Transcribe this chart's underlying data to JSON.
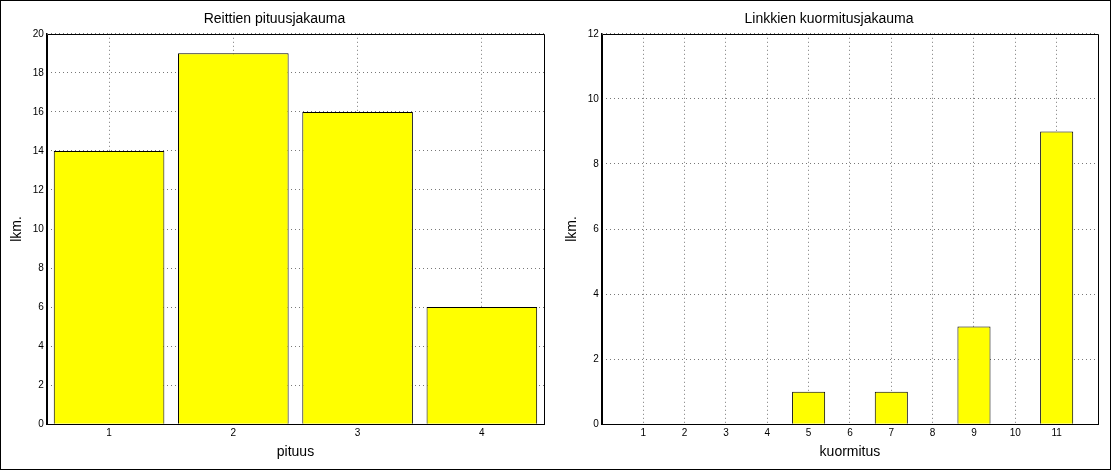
{
  "chart_data": [
    {
      "type": "bar",
      "title": "Reittien pituusjakauma",
      "xlabel": "pituus",
      "ylabel": "lkm.",
      "categories": [
        "1",
        "2",
        "3",
        "4"
      ],
      "values": [
        14,
        19,
        16,
        6
      ],
      "color": "#ffff00",
      "ylim": [
        0,
        20
      ],
      "yticks": [
        0,
        2,
        4,
        6,
        8,
        10,
        12,
        14,
        16,
        18,
        20
      ],
      "grid": true,
      "legend": false
    },
    {
      "type": "bar",
      "title": "Linkkien kuormitusjakauma",
      "xlabel": "kuormitus",
      "ylabel": "lkm.",
      "x": [
        1,
        2,
        3,
        4,
        5,
        6,
        7,
        8,
        9,
        10,
        11
      ],
      "values": [
        0,
        0,
        0,
        0,
        1,
        0,
        1,
        0,
        3,
        0,
        9
      ],
      "color": "#ffff00",
      "xlim": [
        0,
        12
      ],
      "xticks": [
        1,
        2,
        3,
        4,
        5,
        6,
        7,
        8,
        9,
        10,
        11
      ],
      "ylim": [
        0,
        12
      ],
      "yticks": [
        0,
        2,
        4,
        6,
        8,
        10,
        12
      ],
      "grid": true,
      "legend": false
    }
  ]
}
